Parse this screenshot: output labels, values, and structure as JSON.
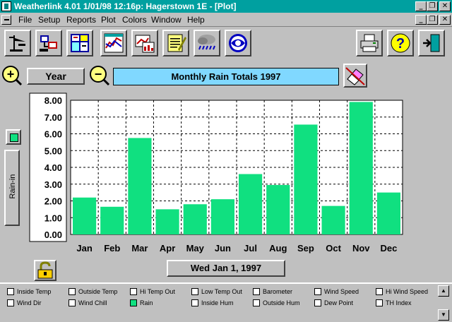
{
  "window": {
    "title": "Weatherlink 4.01     1/01/98  12:16p: Hagerstown 1E - [Plot]",
    "controls": {
      "minimize": "_",
      "restore": "❐",
      "close": "✕"
    }
  },
  "menu": [
    "File",
    "Setup",
    "Reports",
    "Plot",
    "Colors",
    "Window",
    "Help"
  ],
  "toolbar": {
    "left": [
      "station-icon",
      "connect-icon",
      "bulletin-icon",
      "graph-icon",
      "multi-graph-icon",
      "notes-icon",
      "rain-cloud-icon",
      "noaa-icon"
    ],
    "right": [
      "printer-icon",
      "help-icon",
      "exit-icon"
    ]
  },
  "plot": {
    "zoom_in": "+",
    "zoom_out": "−",
    "period_label": "Year",
    "title": "Monthly Rain Totals 1997",
    "unit_label": "Rain-in",
    "date_label": "Wed Jan 1, 1997"
  },
  "chart_data": {
    "type": "bar",
    "title": "Monthly Rain Totals 1997",
    "xlabel": "",
    "ylabel": "Rain-in",
    "categories": [
      "Jan",
      "Feb",
      "Mar",
      "Apr",
      "May",
      "Jun",
      "Jul",
      "Aug",
      "Sep",
      "Oct",
      "Nov",
      "Dec"
    ],
    "values": [
      2.2,
      1.65,
      5.75,
      1.5,
      1.8,
      2.1,
      3.6,
      2.95,
      6.55,
      1.7,
      7.9,
      2.5
    ],
    "ylim": [
      0,
      8
    ],
    "yticks": [
      "0.00",
      "1.00",
      "2.00",
      "3.00",
      "4.00",
      "5.00",
      "6.00",
      "7.00",
      "8.00"
    ],
    "grid": true,
    "bar_color": "#10e080"
  },
  "checkboxes": [
    {
      "label": "Inside Temp",
      "checked": false
    },
    {
      "label": "Outside Temp",
      "checked": false
    },
    {
      "label": "Hi Temp Out",
      "checked": false
    },
    {
      "label": "Low Temp Out",
      "checked": false
    },
    {
      "label": "Barometer",
      "checked": false
    },
    {
      "label": "Wind Speed",
      "checked": false
    },
    {
      "label": "Hi Wind Speed",
      "checked": false
    },
    {
      "label": "Wind Dir",
      "checked": false
    },
    {
      "label": "Wind Chill",
      "checked": false
    },
    {
      "label": "Rain",
      "checked": true
    },
    {
      "label": "Inside Hum",
      "checked": false
    },
    {
      "label": "Outside Hum",
      "checked": false
    },
    {
      "label": "Dew Point",
      "checked": false
    },
    {
      "label": "TH Index",
      "checked": false
    }
  ],
  "colors": {
    "titlebar": "#00a0a0",
    "title_box": "#80d8ff",
    "bar": "#10e080"
  }
}
